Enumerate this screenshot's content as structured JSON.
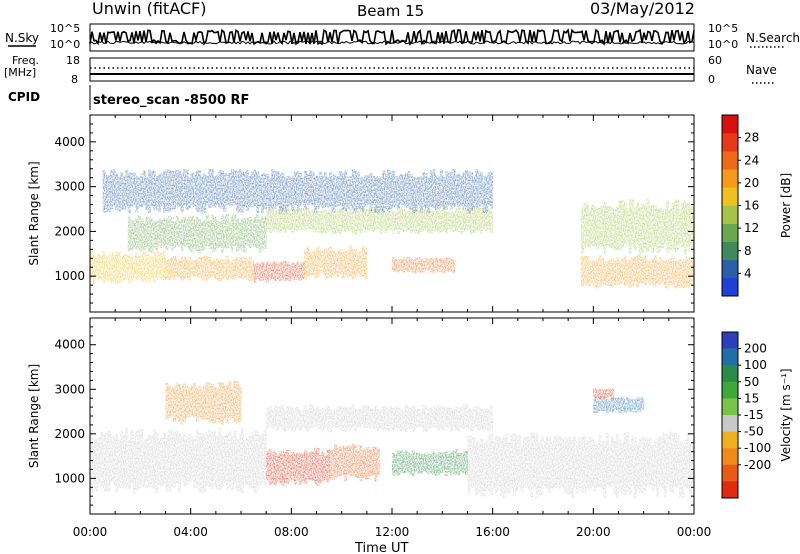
{
  "header": {
    "station": "Unwin (fitACF)",
    "beam": "Beam 15",
    "date": "03/May/2012"
  },
  "summary_panels": {
    "nsky_label": "N.Sky",
    "nsearch_label": "N.Search",
    "nsky_ticks": [
      "10^5",
      "10^0"
    ],
    "nsearch_ticks": [
      "10^5",
      "10^0"
    ],
    "freq_label_line1": "Freq.",
    "freq_label_line2": "[MHz]",
    "freq_ticks": [
      "18",
      "8"
    ],
    "nave_label": "Nave",
    "nave_ticks": [
      "60",
      "0"
    ],
    "cpid_label": "CPID",
    "cpid_value": "stereo_scan -8500 RF"
  },
  "chart_data": [
    {
      "type": "heatmap",
      "title": "",
      "parameter": "Power",
      "ylabel": "Slant Range [km]",
      "xlabel": "Time UT",
      "x_ticks": [
        "00:00",
        "04:00",
        "08:00",
        "12:00",
        "16:00",
        "20:00",
        "00:00"
      ],
      "y_ticks": [
        1000,
        2000,
        3000,
        4000
      ],
      "ylim": [
        200,
        4600
      ],
      "xlim_hours": [
        0,
        24
      ],
      "colorbar": {
        "label": "Power [dB]",
        "ticks": [
          4,
          8,
          12,
          16,
          20,
          24,
          28
        ],
        "range": [
          0,
          32
        ],
        "colors": [
          "#1f3fd6",
          "#2a5fa8",
          "#3f8a5a",
          "#6aa84f",
          "#a6c24a",
          "#f0c020",
          "#f59a1a",
          "#ee6a1a",
          "#e53a1a",
          "#d81010"
        ]
      },
      "echo_bands": [
        {
          "t_start": 0.0,
          "t_end": 3.0,
          "r_low": 900,
          "r_high": 1500,
          "value": 18
        },
        {
          "t_start": 3.0,
          "t_end": 6.5,
          "r_low": 950,
          "r_high": 1400,
          "value": 20
        },
        {
          "t_start": 6.5,
          "t_end": 8.5,
          "r_low": 900,
          "r_high": 1300,
          "value": 28
        },
        {
          "t_start": 8.5,
          "t_end": 11.0,
          "r_low": 1000,
          "r_high": 1600,
          "value": 20
        },
        {
          "t_start": 12.0,
          "t_end": 14.5,
          "r_low": 1100,
          "r_high": 1400,
          "value": 24
        },
        {
          "t_start": 19.5,
          "t_end": 24.0,
          "r_low": 800,
          "r_high": 1400,
          "value": 22
        },
        {
          "t_start": 1.5,
          "t_end": 7.0,
          "r_low": 1600,
          "r_high": 2300,
          "value": 12
        },
        {
          "t_start": 7.0,
          "t_end": 16.0,
          "r_low": 2000,
          "r_high": 2500,
          "value": 14
        },
        {
          "t_start": 19.5,
          "t_end": 24.0,
          "r_low": 1600,
          "r_high": 2600,
          "value": 14
        },
        {
          "t_start": 0.5,
          "t_end": 16.0,
          "r_low": 2500,
          "r_high": 3300,
          "value": 4
        }
      ]
    },
    {
      "type": "heatmap",
      "title": "",
      "parameter": "Velocity",
      "ylabel": "Slant Range [km]",
      "xlabel": "Time UT",
      "x_ticks": [
        "00:00",
        "04:00",
        "08:00",
        "12:00",
        "16:00",
        "20:00",
        "00:00"
      ],
      "y_ticks": [
        1000,
        2000,
        3000,
        4000
      ],
      "ylim": [
        200,
        4600
      ],
      "xlim_hours": [
        0,
        24
      ],
      "colorbar": {
        "label": "Velocity [m s⁻¹]",
        "ticks": [
          "200",
          "100",
          "50",
          "15",
          "-15",
          "-50",
          "-100",
          "-200"
        ],
        "range": [
          -250,
          250
        ],
        "colors": [
          "#2a3fb8",
          "#1f6fa8",
          "#2a8a4a",
          "#3fa83a",
          "#7ac44a",
          "#c8c8c8",
          "#f0b020",
          "#f08a1a",
          "#e85a1a",
          "#e02a10"
        ]
      },
      "echo_bands": [
        {
          "t_start": 0.0,
          "t_end": 7.0,
          "r_low": 800,
          "r_high": 2000,
          "value": 0
        },
        {
          "t_start": 7.0,
          "t_end": 9.5,
          "r_low": 900,
          "r_high": 1600,
          "value": -200
        },
        {
          "t_start": 9.5,
          "t_end": 11.5,
          "r_low": 1000,
          "r_high": 1700,
          "value": -120
        },
        {
          "t_start": 12.0,
          "t_end": 15.0,
          "r_low": 1100,
          "r_high": 1600,
          "value": 60
        },
        {
          "t_start": 15.0,
          "t_end": 24.0,
          "r_low": 700,
          "r_high": 1900,
          "value": 0
        },
        {
          "t_start": 7.0,
          "t_end": 16.0,
          "r_low": 2100,
          "r_high": 2600,
          "value": 0
        },
        {
          "t_start": 3.0,
          "t_end": 6.0,
          "r_low": 2300,
          "r_high": 3100,
          "value": -50
        },
        {
          "t_start": 20.0,
          "t_end": 22.0,
          "r_low": 2500,
          "r_high": 2800,
          "value": 120
        },
        {
          "t_start": 20.0,
          "t_end": 20.8,
          "r_low": 2800,
          "r_high": 3000,
          "value": -200
        }
      ]
    }
  ]
}
